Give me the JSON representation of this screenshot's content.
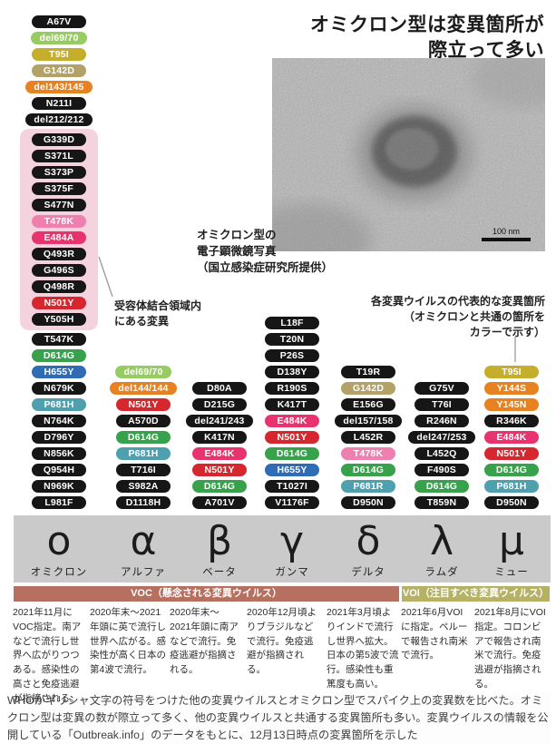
{
  "title": {
    "lines": [
      "オミクロン型は変異箇所が",
      "際立って多い"
    ]
  },
  "em_photo": {
    "caption_lines": [
      "オミクロン型の",
      "電子顕微鏡写真",
      "（国立感染症研究所提供）"
    ],
    "scale_label": "100 nm"
  },
  "annotations": {
    "rbd_lines": [
      "受容体結合領域内",
      "にある変異"
    ],
    "common_lines": [
      "各変異ウイルスの代表的な変異箇所",
      "（オミクロンと共通の箇所を",
      "カラーで示す）"
    ]
  },
  "mutation_colors": {
    "black": "#161616",
    "green": "#38a14c",
    "light_green": "#97cc62",
    "yellow": "#c5ae2b",
    "tan": "#b3a267",
    "orange": "#e8811f",
    "pink": "#ee7fae",
    "crimson": "#e9336f",
    "red": "#d7272e",
    "blue": "#2e6db6",
    "teal": "#4fa0af"
  },
  "rbd_box_color": "#f5d3de",
  "omicron": {
    "greek": "ο",
    "name": "オミクロン",
    "mutations_top": [
      {
        "label": "A67V",
        "color": "black"
      },
      {
        "label": "del69/70",
        "color": "light_green"
      },
      {
        "label": "T95I",
        "color": "yellow"
      },
      {
        "label": "G142D",
        "color": "tan"
      },
      {
        "label": "del143/145",
        "color": "orange"
      },
      {
        "label": "N211I",
        "color": "black"
      },
      {
        "label": "del212/212",
        "color": "black"
      }
    ],
    "mutations_rbd": [
      {
        "label": "G339D",
        "color": "black"
      },
      {
        "label": "S371L",
        "color": "black"
      },
      {
        "label": "S373P",
        "color": "black"
      },
      {
        "label": "S375F",
        "color": "black"
      },
      {
        "label": "S477N",
        "color": "black"
      },
      {
        "label": "T478K",
        "color": "pink"
      },
      {
        "label": "E484A",
        "color": "crimson"
      },
      {
        "label": "Q493R",
        "color": "black"
      },
      {
        "label": "G496S",
        "color": "black"
      },
      {
        "label": "Q498R",
        "color": "black"
      },
      {
        "label": "N501Y",
        "color": "red"
      },
      {
        "label": "Y505H",
        "color": "black"
      }
    ],
    "mutations_bottom": [
      {
        "label": "T547K",
        "color": "black"
      },
      {
        "label": "D614G",
        "color": "green"
      },
      {
        "label": "H655Y",
        "color": "blue"
      },
      {
        "label": "N679K",
        "color": "black"
      },
      {
        "label": "P681H",
        "color": "teal"
      },
      {
        "label": "N764K",
        "color": "black"
      },
      {
        "label": "D796Y",
        "color": "black"
      },
      {
        "label": "N856K",
        "color": "black"
      },
      {
        "label": "Q954H",
        "color": "black"
      },
      {
        "label": "N969K",
        "color": "black"
      },
      {
        "label": "L981F",
        "color": "black"
      }
    ],
    "description": "2021年11月にVOC指定。南アなどで流行し世界へ広がりつつある。感染性の高さと免疫逃避が指摘される。"
  },
  "variants": [
    {
      "greek": "α",
      "name": "アルファ",
      "mutations": [
        {
          "label": "del69/70",
          "color": "light_green"
        },
        {
          "label": "del144/144",
          "color": "orange"
        },
        {
          "label": "N501Y",
          "color": "red"
        },
        {
          "label": "A570D",
          "color": "black"
        },
        {
          "label": "D614G",
          "color": "green"
        },
        {
          "label": "P681H",
          "color": "teal"
        },
        {
          "label": "T716I",
          "color": "black"
        },
        {
          "label": "S982A",
          "color": "black"
        },
        {
          "label": "D1118H",
          "color": "black"
        }
      ],
      "description": "2020年末〜2021年頭に英で流行し世界へ広がる。感染性が高く日本の第4波で流行。"
    },
    {
      "greek": "β",
      "name": "ベータ",
      "mutations": [
        {
          "label": "D80A",
          "color": "black"
        },
        {
          "label": "D215G",
          "color": "black"
        },
        {
          "label": "del241/243",
          "color": "black"
        },
        {
          "label": "K417N",
          "color": "black"
        },
        {
          "label": "E484K",
          "color": "crimson"
        },
        {
          "label": "N501Y",
          "color": "red"
        },
        {
          "label": "D614G",
          "color": "green"
        },
        {
          "label": "A701V",
          "color": "black"
        }
      ],
      "description": "2020年末〜2021年頭に南アなどで流行。免疫逃避が指摘される。"
    },
    {
      "greek": "γ",
      "name": "ガンマ",
      "mutations": [
        {
          "label": "L18F",
          "color": "black"
        },
        {
          "label": "T20N",
          "color": "black"
        },
        {
          "label": "P26S",
          "color": "black"
        },
        {
          "label": "D138Y",
          "color": "black"
        },
        {
          "label": "R190S",
          "color": "black"
        },
        {
          "label": "K417T",
          "color": "black"
        },
        {
          "label": "E484K",
          "color": "crimson"
        },
        {
          "label": "N501Y",
          "color": "red"
        },
        {
          "label": "D614G",
          "color": "green"
        },
        {
          "label": "H655Y",
          "color": "blue"
        },
        {
          "label": "T1027I",
          "color": "black"
        },
        {
          "label": "V1176F",
          "color": "black"
        }
      ],
      "description": "2020年12月頃よりブラジルなどで流行。免疫逃避が指摘される。"
    },
    {
      "greek": "δ",
      "name": "デルタ",
      "mutations": [
        {
          "label": "T19R",
          "color": "black"
        },
        {
          "label": "G142D",
          "color": "tan"
        },
        {
          "label": "E156G",
          "color": "black"
        },
        {
          "label": "del157/158",
          "color": "black"
        },
        {
          "label": "L452R",
          "color": "black"
        },
        {
          "label": "T478K",
          "color": "pink"
        },
        {
          "label": "D614G",
          "color": "green"
        },
        {
          "label": "P681R",
          "color": "teal"
        },
        {
          "label": "D950N",
          "color": "black"
        }
      ],
      "description": "2021年3月頃よりインドで流行し世界へ拡大。日本の第5波で流行。感染性も重篤度も高い。"
    },
    {
      "greek": "λ",
      "name": "ラムダ",
      "mutations": [
        {
          "label": "G75V",
          "color": "black"
        },
        {
          "label": "T76I",
          "color": "black"
        },
        {
          "label": "R246N",
          "color": "black"
        },
        {
          "label": "del247/253",
          "color": "black"
        },
        {
          "label": "L452Q",
          "color": "black"
        },
        {
          "label": "F490S",
          "color": "black"
        },
        {
          "label": "D614G",
          "color": "green"
        },
        {
          "label": "T859N",
          "color": "black"
        }
      ],
      "description": "2021年6月VOIに指定。ペルーで報告され南米で流行。"
    },
    {
      "greek": "μ",
      "name": "ミュー",
      "mutations": [
        {
          "label": "T95I",
          "color": "yellow"
        },
        {
          "label": "Y144S",
          "color": "orange"
        },
        {
          "label": "Y145N",
          "color": "orange"
        },
        {
          "label": "R346K",
          "color": "black"
        },
        {
          "label": "E484K",
          "color": "crimson"
        },
        {
          "label": "N501Y",
          "color": "red"
        },
        {
          "label": "D614G",
          "color": "green"
        },
        {
          "label": "P681H",
          "color": "teal"
        },
        {
          "label": "D950N",
          "color": "black"
        }
      ],
      "description": "2021年8月にVOI指定。コロンビアで報告され南米で流行。免疫逃避が指摘される。"
    }
  ],
  "classification": {
    "voc_label": "VOC（懸念される変異ウイルス）",
    "voi_label": "VOI（注目すべき変異ウイルス）",
    "voc_color": "#b7705f",
    "voi_color": "#b5b266"
  },
  "footer": "WHOがギリシャ文字の符号をつけた他の変異ウイルスとオミクロン型でスパイク上の変異数を比べた。オミクロン型は変異の数が際立って多く、他の変異ウイルスと共通する変異箇所も多い。変異ウイルスの情報を公開している「Outbreak.info」のデータをもとに、12月13日時点の変異箇所を示した"
}
